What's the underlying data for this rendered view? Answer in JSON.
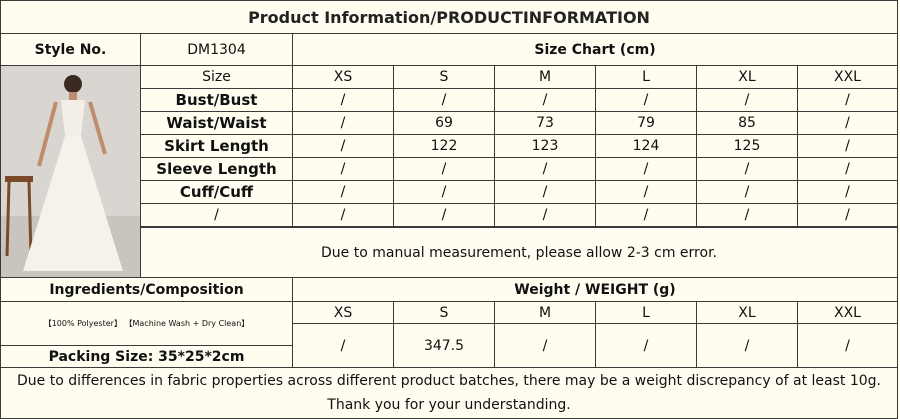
{
  "title": "Product Information/PRODUCTINFORMATION",
  "style_label": "Style No.",
  "style_no": "DM1304",
  "size_chart_title": "Size Chart (cm)",
  "size_table": {
    "header": [
      "Size",
      "XS",
      "S",
      "M",
      "L",
      "XL",
      "XXL"
    ],
    "rows": [
      [
        "Bust/Bust",
        "/",
        "/",
        "/",
        "/",
        "/",
        "/"
      ],
      [
        "Waist/Waist",
        "/",
        69,
        73,
        79,
        85,
        "/"
      ],
      [
        "Skirt Length",
        "/",
        122,
        123,
        124,
        125,
        "/"
      ],
      [
        "Sleeve Length",
        "/",
        "/",
        "/",
        "/",
        "/",
        "/"
      ],
      [
        "Cuff/Cuff",
        "/",
        "/",
        "/",
        "/",
        "/",
        "/"
      ],
      [
        "/",
        "/",
        "/",
        "/",
        "/",
        "/",
        "/"
      ]
    ]
  },
  "note": "Due to manual measurement, please allow 2-3 cm error.",
  "ingredients_label": "Ingredients/Composition",
  "composition": "【100% Polyester】 【Machine Wash + Dry Clean】",
  "packing_size": "Packing Size: 35*25*2cm",
  "weight_title": "Weight / WEIGHT (g)",
  "weight_table": {
    "sizes": [
      "XS",
      "S",
      "M",
      "L",
      "XL",
      "XXL"
    ],
    "values": [
      "/",
      347.5,
      "/",
      "/",
      "/",
      "/"
    ]
  },
  "footer": [
    "Due to differences in fabric properties across different product batches, there may be a weight discrepancy of at least 10g.",
    "Thank you for your understanding."
  ]
}
